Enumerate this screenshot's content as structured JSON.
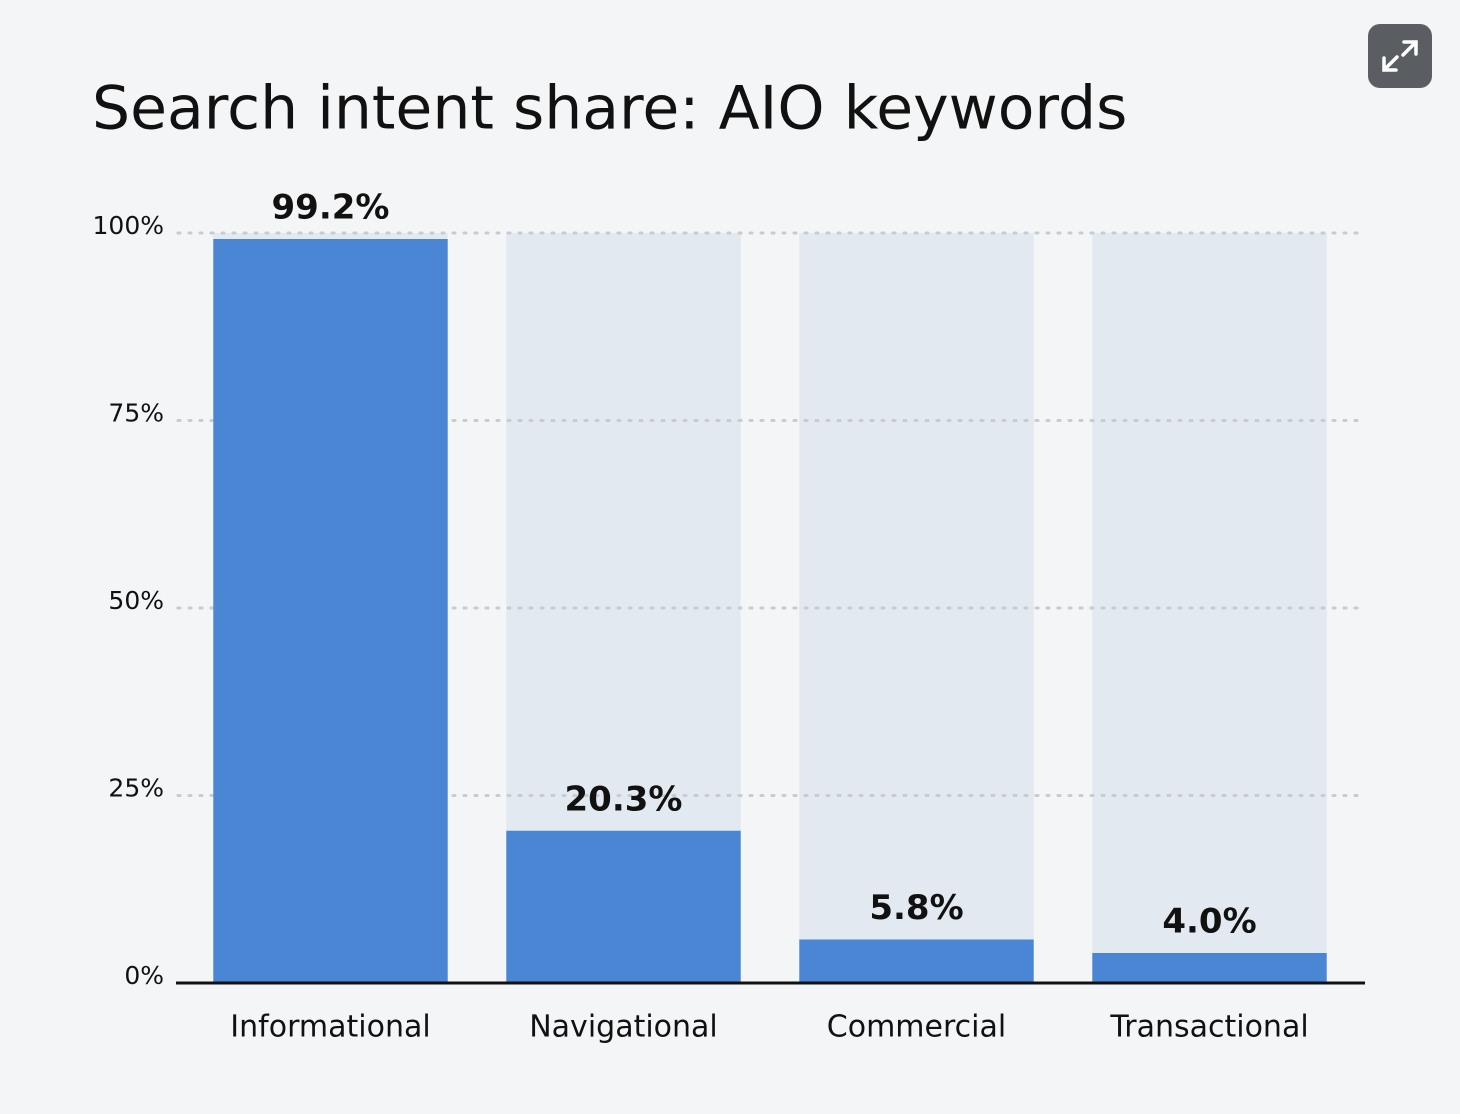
{
  "chart_data": {
    "type": "bar",
    "title": "Search intent share: AIO keywords",
    "categories": [
      "Informational",
      "Navigational",
      "Commercial",
      "Transactional"
    ],
    "values": [
      99.2,
      20.3,
      5.8,
      4.0
    ],
    "value_labels": [
      "99.2%",
      "20.3%",
      "5.8%",
      "4.0%"
    ],
    "color": "#4a86d4",
    "ylim": [
      0,
      100
    ],
    "yticks": [
      {
        "value": 0,
        "label": "0%"
      },
      {
        "value": 25,
        "label": "25%"
      },
      {
        "value": 50,
        "label": "50%"
      },
      {
        "value": 75,
        "label": "75%"
      },
      {
        "value": 100,
        "label": "100%"
      }
    ],
    "grid": true
  }
}
